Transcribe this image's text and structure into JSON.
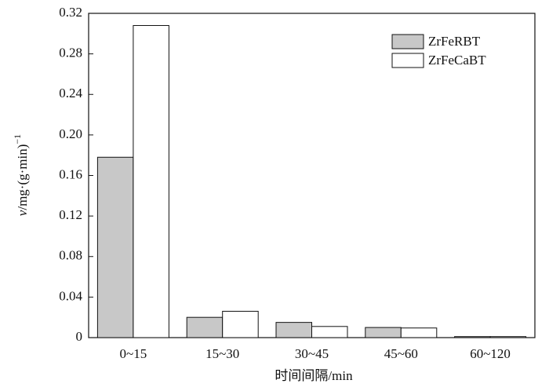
{
  "chart_data": {
    "type": "bar",
    "categories": [
      "0~15",
      "15~30",
      "30~45",
      "45~60",
      "60~120"
    ],
    "series": [
      {
        "name": "ZrFeRBT",
        "color": "#c8c8c8",
        "values": [
          0.178,
          0.02,
          0.015,
          0.01,
          0.001
        ]
      },
      {
        "name": "ZrFeCaBT",
        "color": "#ffffff",
        "values": [
          0.308,
          0.026,
          0.011,
          0.0095,
          0.001
        ]
      }
    ],
    "ylim": [
      0,
      0.32
    ],
    "yticks": [
      0,
      0.04,
      0.08,
      0.12,
      0.16,
      {
        "value": 0.2,
        "label": "0.20"
      },
      0.24,
      0.28,
      0.32
    ],
    "x_label": "时间间隔/min",
    "y_label": {
      "variable": "v",
      "unit": "/mg·(g·min)",
      "exponent": "−1"
    },
    "legend": "upper-right"
  }
}
